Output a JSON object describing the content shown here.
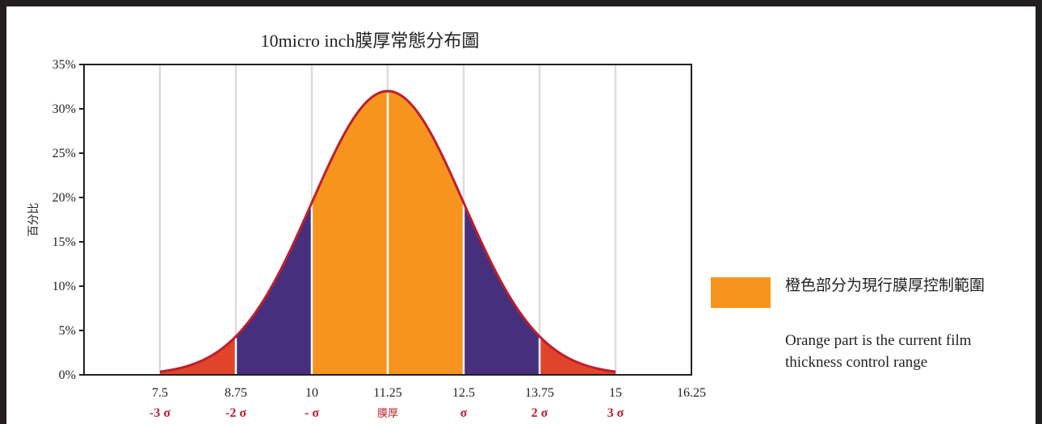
{
  "chart_data": {
    "type": "area",
    "title": "10micro inch膜厚常態分布圖",
    "xlabel": "",
    "ylabel": "百分比",
    "ylim": [
      0,
      35
    ],
    "xlim": [
      6.25,
      16.25
    ],
    "y_ticks": [
      "0%",
      "5%",
      "10%",
      "15%",
      "20%",
      "25%",
      "30%",
      "35%"
    ],
    "x_ticks": [
      {
        "value": 7.5,
        "label": "7.5",
        "sigma": "-3 σ"
      },
      {
        "value": 8.75,
        "label": "8.75",
        "sigma": "-2 σ"
      },
      {
        "value": 10,
        "label": "10",
        "sigma": "- σ"
      },
      {
        "value": 11.25,
        "label": "11.25",
        "sigma": "膜厚"
      },
      {
        "value": 12.5,
        "label": "12.5",
        "sigma": "σ"
      },
      {
        "value": 13.75,
        "label": "13.75",
        "sigma": "2 σ"
      },
      {
        "value": 15,
        "label": "15",
        "sigma": "3 σ"
      },
      {
        "value": 16.25,
        "label": "16.25",
        "sigma": ""
      }
    ],
    "distribution": {
      "mean": 11.25,
      "sd": 1.25,
      "peak_percent": 32,
      "curve_range": [
        7.5,
        15
      ]
    },
    "bands": [
      {
        "from": 7.5,
        "to": 8.75,
        "color": "#e0452b"
      },
      {
        "from": 8.75,
        "to": 10,
        "color": "#46307e"
      },
      {
        "from": 10,
        "to": 12.5,
        "color": "#f7941d"
      },
      {
        "from": 12.5,
        "to": 13.75,
        "color": "#46307e"
      },
      {
        "from": 13.75,
        "to": 15,
        "color": "#e0452b"
      }
    ],
    "curve_color": "#be1e2d",
    "sigma_label_color": "#be1e2d",
    "grid": "vertical",
    "grid_color": "#dcdcdc",
    "legend_placement": "right"
  },
  "legend": {
    "swatch_color": "#f7941d",
    "label_cn": "橙色部分为現行膜厚控制範圍",
    "label_en": "Orange part is the current film\n thickness control range"
  }
}
